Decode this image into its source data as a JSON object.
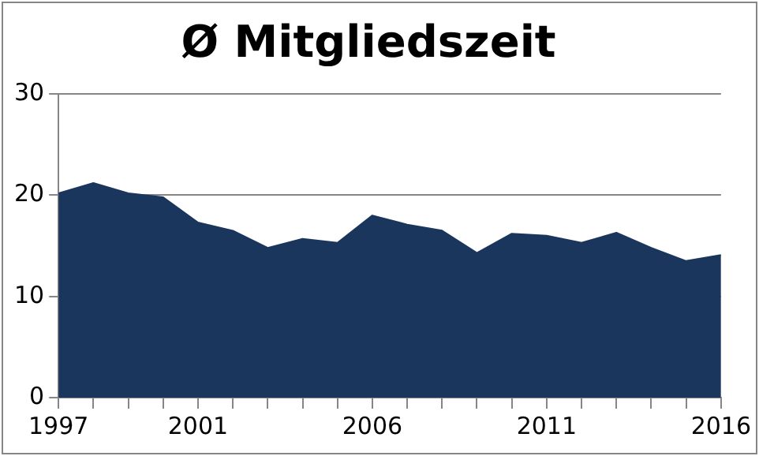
{
  "chart_data": {
    "type": "area",
    "title": "Ø Mitgliedszeit",
    "x": [
      1997,
      1998,
      1999,
      2000,
      2001,
      2002,
      2003,
      2004,
      2005,
      2006,
      2007,
      2008,
      2009,
      2010,
      2011,
      2012,
      2013,
      2014,
      2015,
      2016
    ],
    "values": [
      20.2,
      21.2,
      20.2,
      19.8,
      17.3,
      16.5,
      14.8,
      15.7,
      15.3,
      18.0,
      17.1,
      16.5,
      14.3,
      16.2,
      16.0,
      15.3,
      16.3,
      14.8,
      13.5,
      14.1
    ],
    "color": "#1b365d",
    "xlim": [
      1997,
      2016
    ],
    "xticks": [
      1997,
      {
        "value": 1998,
        "label": null
      },
      {
        "value": 1999,
        "label": null
      },
      {
        "value": 2000,
        "label": null
      },
      2001,
      {
        "value": 2002,
        "label": null
      },
      {
        "value": 2003,
        "label": null
      },
      {
        "value": 2004,
        "label": null
      },
      {
        "value": 2005,
        "label": null
      },
      2006,
      {
        "value": 2007,
        "label": null
      },
      {
        "value": 2008,
        "label": null
      },
      {
        "value": 2009,
        "label": null
      },
      {
        "value": 2010,
        "label": null
      },
      2011,
      {
        "value": 2012,
        "label": null
      },
      {
        "value": 2013,
        "label": null
      },
      {
        "value": 2014,
        "label": null
      },
      {
        "value": 2015,
        "label": null
      },
      2016
    ],
    "ylim": [
      0,
      30
    ],
    "yticks": [
      0,
      10,
      20,
      30
    ],
    "grid": "y",
    "legend": false
  }
}
